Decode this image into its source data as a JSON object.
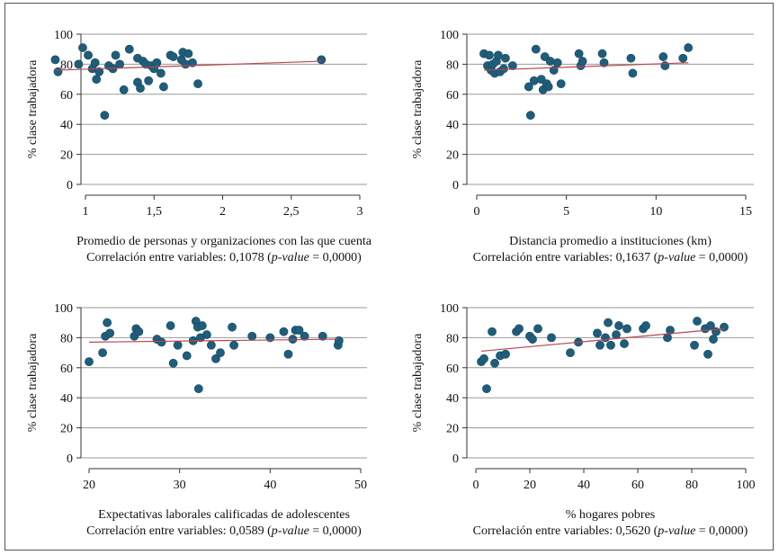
{
  "chart_data": [
    {
      "type": "scatter",
      "ylabel": "% clase trabajadora",
      "xlabel": "Promedio de personas y organizaciones con las que cuenta",
      "caption_prefix": "Correlación entre variables: 0,1078 (",
      "caption_pvalue": "p-value",
      "caption_suffix": " = 0,0000)",
      "xlim": [
        0.8,
        3
      ],
      "ylim": [
        0,
        100
      ],
      "xticks": [
        1,
        1.5,
        2,
        2.5,
        3
      ],
      "xtick_labels": [
        "1",
        "1,5",
        "2",
        "2,5",
        "3"
      ],
      "yticks": [
        0,
        20,
        40,
        60,
        80,
        100
      ],
      "ytick_labels": [
        "0",
        "20",
        "40",
        "60",
        "80",
        "100"
      ],
      "grid": true,
      "fit": [
        [
          0.78,
          76
        ],
        [
          2.72,
          82
        ]
      ],
      "points": [
        [
          0.78,
          83
        ],
        [
          0.8,
          75
        ],
        [
          0.95,
          80
        ],
        [
          0.98,
          91
        ],
        [
          1.02,
          86
        ],
        [
          1.05,
          77
        ],
        [
          1.07,
          81
        ],
        [
          1.08,
          70
        ],
        [
          1.1,
          75
        ],
        [
          1.14,
          46
        ],
        [
          1.17,
          79
        ],
        [
          1.2,
          77
        ],
        [
          1.22,
          86
        ],
        [
          1.25,
          80
        ],
        [
          1.28,
          63
        ],
        [
          1.32,
          90
        ],
        [
          1.38,
          68
        ],
        [
          1.38,
          84
        ],
        [
          1.4,
          64
        ],
        [
          1.42,
          82
        ],
        [
          1.44,
          80
        ],
        [
          1.46,
          69
        ],
        [
          1.48,
          79
        ],
        [
          1.5,
          77
        ],
        [
          1.52,
          81
        ],
        [
          1.55,
          74
        ],
        [
          1.57,
          65
        ],
        [
          1.62,
          86
        ],
        [
          1.64,
          85
        ],
        [
          1.7,
          83
        ],
        [
          1.71,
          88
        ],
        [
          1.73,
          80
        ],
        [
          1.75,
          87
        ],
        [
          1.78,
          81
        ],
        [
          1.82,
          67
        ],
        [
          2.72,
          83
        ]
      ]
    },
    {
      "type": "scatter",
      "ylabel": "% clase trabajadora",
      "xlabel": "Distancia promedio a instituciones (km)",
      "caption_prefix": "Correlación entre variables: 0,1637 (",
      "caption_pvalue": "p-value",
      "caption_suffix": " = 0,0000)",
      "xlim": [
        0,
        15
      ],
      "ylim": [
        0,
        100
      ],
      "xticks": [
        0,
        5,
        10,
        15
      ],
      "xtick_labels": [
        "0",
        "5",
        "10",
        "15"
      ],
      "yticks": [
        0,
        20,
        40,
        60,
        80,
        100
      ],
      "ytick_labels": [
        "0",
        "20",
        "40",
        "60",
        "80",
        "100"
      ],
      "grid": true,
      "fit": [
        [
          0.4,
          76
        ],
        [
          11.8,
          81
        ]
      ],
      "points": [
        [
          0.4,
          87
        ],
        [
          0.6,
          79
        ],
        [
          0.7,
          86
        ],
        [
          0.8,
          76
        ],
        [
          0.9,
          80
        ],
        [
          1.0,
          74
        ],
        [
          1.1,
          82
        ],
        [
          1.2,
          86
        ],
        [
          1.3,
          75
        ],
        [
          1.5,
          77
        ],
        [
          1.6,
          84
        ],
        [
          2.0,
          79
        ],
        [
          2.9,
          65
        ],
        [
          3.0,
          46
        ],
        [
          3.2,
          69
        ],
        [
          3.3,
          90
        ],
        [
          3.6,
          70
        ],
        [
          3.7,
          63
        ],
        [
          3.8,
          85
        ],
        [
          3.9,
          67
        ],
        [
          4.0,
          65
        ],
        [
          4.1,
          82
        ],
        [
          4.3,
          76
        ],
        [
          4.5,
          81
        ],
        [
          4.7,
          67
        ],
        [
          5.7,
          87
        ],
        [
          5.8,
          79
        ],
        [
          5.9,
          82
        ],
        [
          7.0,
          87
        ],
        [
          7.1,
          81
        ],
        [
          8.6,
          84
        ],
        [
          8.7,
          74
        ],
        [
          10.4,
          85
        ],
        [
          10.5,
          79
        ],
        [
          11.5,
          84
        ],
        [
          11.8,
          91
        ]
      ]
    },
    {
      "type": "scatter",
      "ylabel": "% clase trabajadora",
      "xlabel": "Expectativas laborales calificadas de adolescentes",
      "caption_prefix": "Correlación entre variables: 0,0589 (",
      "caption_pvalue": "p-value",
      "caption_suffix": " = 0,0000)",
      "xlim": [
        20,
        50
      ],
      "ylim": [
        0,
        100
      ],
      "xticks": [
        20,
        30,
        40,
        50
      ],
      "xtick_labels": [
        "20",
        "30",
        "40",
        "50"
      ],
      "yticks": [
        0,
        20,
        40,
        60,
        80,
        100
      ],
      "ytick_labels": [
        "0",
        "20",
        "40",
        "60",
        "80",
        "100"
      ],
      "grid": true,
      "fit": [
        [
          20,
          77
        ],
        [
          47.5,
          79
        ]
      ],
      "points": [
        [
          20,
          64
        ],
        [
          21.5,
          70
        ],
        [
          21.8,
          81
        ],
        [
          22,
          90
        ],
        [
          22.3,
          83
        ],
        [
          25,
          81
        ],
        [
          25.2,
          86
        ],
        [
          25.5,
          84
        ],
        [
          27.5,
          79
        ],
        [
          28,
          77
        ],
        [
          29,
          88
        ],
        [
          29.3,
          63
        ],
        [
          29.8,
          75
        ],
        [
          30.8,
          68
        ],
        [
          31.5,
          78
        ],
        [
          31.8,
          91
        ],
        [
          32,
          87
        ],
        [
          32.1,
          46
        ],
        [
          32.3,
          80
        ],
        [
          32.5,
          88
        ],
        [
          33,
          82
        ],
        [
          33.5,
          75
        ],
        [
          34,
          66
        ],
        [
          34.5,
          70
        ],
        [
          35.8,
          87
        ],
        [
          36,
          75
        ],
        [
          38,
          81
        ],
        [
          40,
          80
        ],
        [
          41.5,
          84
        ],
        [
          42,
          69
        ],
        [
          42.5,
          79
        ],
        [
          42.8,
          85
        ],
        [
          43.2,
          85
        ],
        [
          43.8,
          81
        ],
        [
          45.8,
          81
        ],
        [
          47.5,
          75
        ],
        [
          47.6,
          78
        ]
      ]
    },
    {
      "type": "scatter",
      "ylabel": "% clase trabajadora",
      "xlabel": "% hogares pobres",
      "caption_prefix": "Correlación entre variables: 0,5620 (",
      "caption_pvalue": "p-value",
      "caption_suffix": " = 0,0000)",
      "xlim": [
        0,
        100
      ],
      "ylim": [
        0,
        100
      ],
      "xticks": [
        0,
        20,
        40,
        60,
        80,
        100
      ],
      "xtick_labels": [
        "0",
        "20",
        "40",
        "60",
        "80",
        "100"
      ],
      "yticks": [
        0,
        20,
        40,
        60,
        80,
        100
      ],
      "ytick_labels": [
        "0",
        "20",
        "40",
        "60",
        "80",
        "100"
      ],
      "grid": true,
      "fit": [
        [
          2,
          71
        ],
        [
          92,
          86
        ]
      ],
      "points": [
        [
          2,
          64
        ],
        [
          3,
          66
        ],
        [
          4,
          46
        ],
        [
          6,
          84
        ],
        [
          7,
          63
        ],
        [
          9,
          68
        ],
        [
          11,
          69
        ],
        [
          15,
          84
        ],
        [
          16,
          86
        ],
        [
          20,
          81
        ],
        [
          21,
          79
        ],
        [
          23,
          86
        ],
        [
          28,
          80
        ],
        [
          35,
          70
        ],
        [
          38,
          77
        ],
        [
          45,
          83
        ],
        [
          46,
          75
        ],
        [
          48,
          80
        ],
        [
          49,
          90
        ],
        [
          50,
          75
        ],
        [
          52,
          82
        ],
        [
          53,
          88
        ],
        [
          55,
          76
        ],
        [
          56,
          86
        ],
        [
          62,
          86
        ],
        [
          63,
          88
        ],
        [
          71,
          80
        ],
        [
          72,
          85
        ],
        [
          81,
          75
        ],
        [
          82,
          91
        ],
        [
          85,
          86
        ],
        [
          86,
          69
        ],
        [
          87,
          88
        ],
        [
          88,
          79
        ],
        [
          89,
          84
        ],
        [
          92,
          87
        ]
      ]
    }
  ]
}
